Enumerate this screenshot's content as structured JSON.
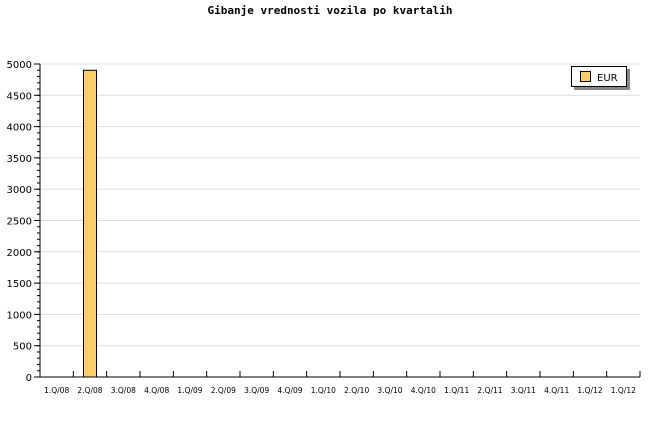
{
  "chart_data": {
    "type": "bar",
    "title": "Gibanje vrednosti vozila po kvartalih",
    "categories": [
      "1.Q/08",
      "2.Q/08",
      "3.Q/08",
      "4.Q/08",
      "1.Q/09",
      "2.Q/09",
      "3.Q/09",
      "4.Q/09",
      "1.Q/10",
      "2.Q/10",
      "3.Q/10",
      "4.Q/10",
      "1.Q/11",
      "2.Q/11",
      "3.Q/11",
      "4.Q/11",
      "1.Q/12",
      "1.Q/12"
    ],
    "series": [
      {
        "name": "EUR",
        "values": [
          0,
          4900,
          0,
          0,
          0,
          0,
          0,
          0,
          0,
          0,
          0,
          0,
          0,
          0,
          0,
          0,
          0,
          0
        ],
        "color": "#ffcc66"
      }
    ],
    "yticks": [
      0,
      500,
      1000,
      1500,
      2000,
      2500,
      3000,
      3500,
      4000,
      4500,
      5000
    ],
    "ylim": [
      0,
      5000
    ],
    "grid": true,
    "legend_position": "top-right"
  }
}
